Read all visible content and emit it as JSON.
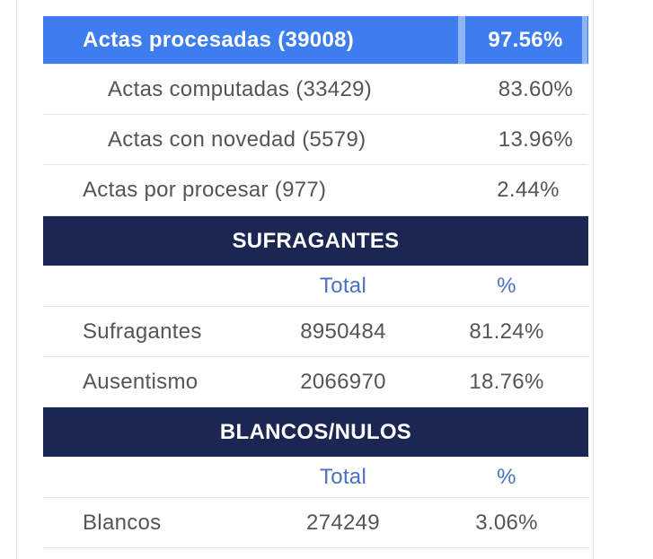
{
  "actas": {
    "rows": [
      {
        "label": "Actas procesadas (39008)",
        "percent": "97.56%"
      },
      {
        "label": "Actas computadas (33429)",
        "percent": "83.60%"
      },
      {
        "label": "Actas con novedad (5579)",
        "percent": "13.96%"
      },
      {
        "label": "Actas por procesar (977)",
        "percent": "2.44%"
      }
    ]
  },
  "sections": [
    {
      "title": "SUFRAGANTES",
      "columns": [
        "Total",
        "%"
      ],
      "rows": [
        {
          "label": "Sufragantes",
          "total": "8950484",
          "percent": "81.24%"
        },
        {
          "label": "Ausentismo",
          "total": "2066970",
          "percent": "18.76%"
        }
      ]
    },
    {
      "title": "BLANCOS/NULOS",
      "columns": [
        "Total",
        "%"
      ],
      "rows": [
        {
          "label": "Blancos",
          "total": "274249",
          "percent": "3.06%"
        }
      ]
    }
  ]
}
